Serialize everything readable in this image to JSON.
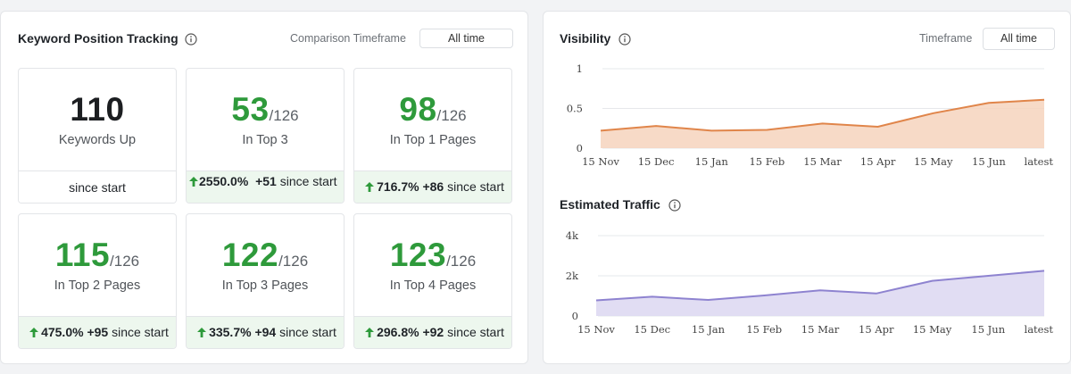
{
  "keyword_panel": {
    "title": "Keyword Position Tracking",
    "timeframe_label": "Comparison Timeframe",
    "timeframe_value": "All time",
    "cards": [
      {
        "value": "110",
        "total": "",
        "label": "Keywords Up",
        "footer": "since start",
        "change_pct": "",
        "change_delta": ""
      },
      {
        "value": "53",
        "total": "/126",
        "label": "In Top 3",
        "footer": "since start",
        "change_pct": "2550.0%",
        "change_delta": "+51"
      },
      {
        "value": "98",
        "total": "/126",
        "label": "In Top 1 Pages",
        "footer": "since start",
        "change_pct": "716.7%",
        "change_delta": "+86"
      },
      {
        "value": "115",
        "total": "/126",
        "label": "In Top 2 Pages",
        "footer": "since start",
        "change_pct": "475.0%",
        "change_delta": "+95"
      },
      {
        "value": "122",
        "total": "/126",
        "label": "In Top 3 Pages",
        "footer": "since start",
        "change_pct": "335.7%",
        "change_delta": "+94"
      },
      {
        "value": "123",
        "total": "/126",
        "label": "In Top 4 Pages",
        "footer": "since start",
        "change_pct": "296.8%",
        "change_delta": "+92"
      }
    ]
  },
  "visibility_panel": {
    "title": "Visibility",
    "timeframe_label": "Timeframe",
    "timeframe_value": "All time"
  },
  "traffic_panel": {
    "title": "Estimated Traffic"
  },
  "colors": {
    "positive_green": "#2e9a3b",
    "visibility_line": "#e0854a",
    "visibility_fill": "#f6d3bd",
    "traffic_line": "#8e83d0",
    "traffic_fill": "#dcd7f1"
  },
  "icons": [
    "info-icon",
    "arrow-up-icon"
  ],
  "chart_data": [
    {
      "type": "area",
      "title": "Visibility",
      "x": [
        "15 Nov",
        "15 Dec",
        "15 Jan",
        "15 Feb",
        "15 Mar",
        "15 Apr",
        "15 May",
        "15 Jun",
        "latest"
      ],
      "y_ticks": [
        "1",
        "0.5",
        "0"
      ],
      "ylim": [
        0,
        1
      ],
      "series": [
        {
          "values": [
            0.22,
            0.28,
            0.22,
            0.23,
            0.31,
            0.27,
            0.44,
            0.57,
            0.61
          ]
        }
      ],
      "grid": true
    },
    {
      "type": "area",
      "title": "Estimated Traffic",
      "x": [
        "15 Nov",
        "15 Dec",
        "15 Jan",
        "15 Feb",
        "15 Mar",
        "15 Apr",
        "15 May",
        "15 Jun",
        "latest"
      ],
      "y_ticks": [
        "4k",
        "2k",
        "0"
      ],
      "ylim": [
        0,
        4000
      ],
      "series": [
        {
          "values": [
            780,
            960,
            800,
            1020,
            1280,
            1120,
            1750,
            2000,
            2250
          ]
        }
      ],
      "grid": true
    }
  ]
}
